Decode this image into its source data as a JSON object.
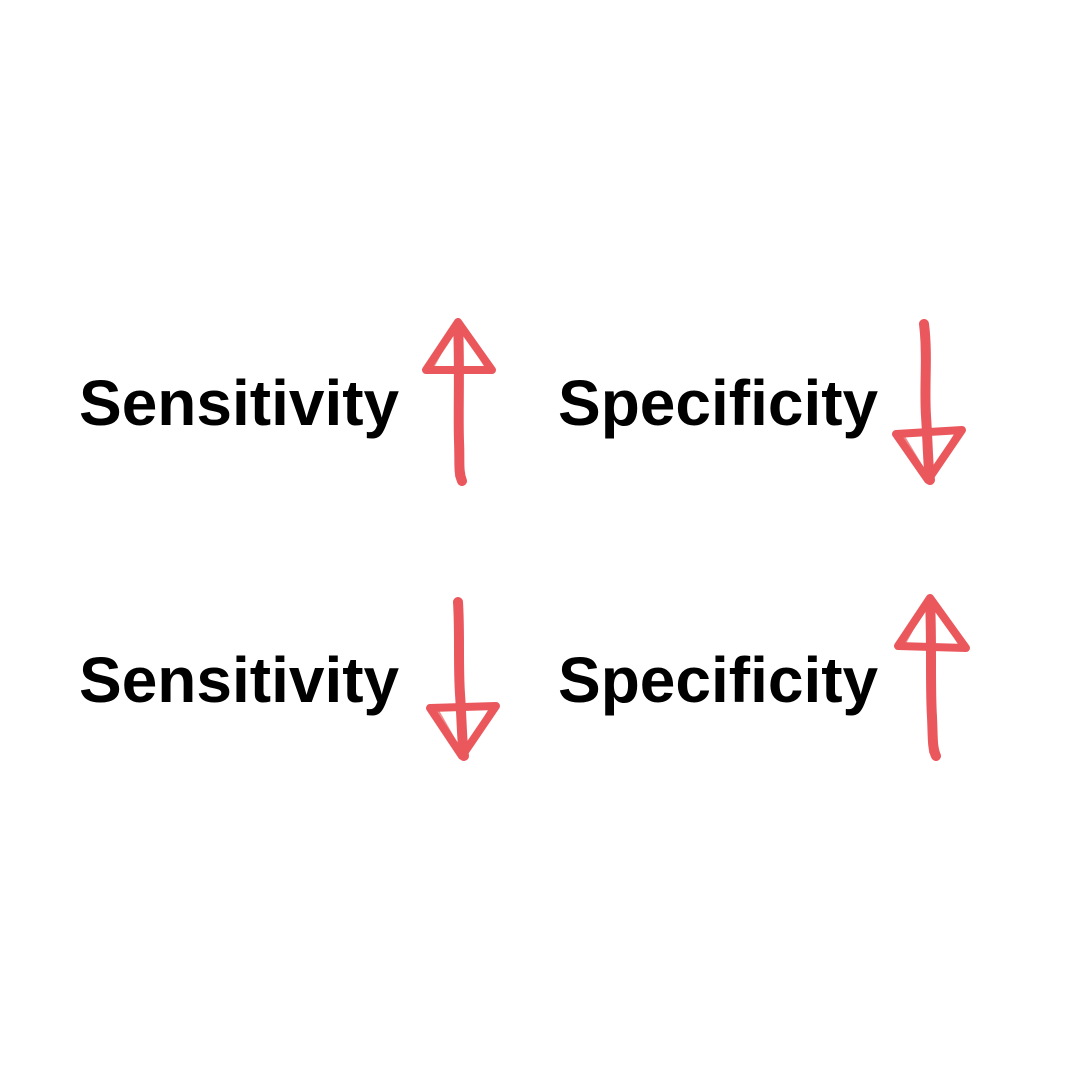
{
  "colors": {
    "background": "#ffffff",
    "text": "#000000",
    "arrow": "#e8474c"
  },
  "rows": [
    {
      "left_label": "Sensitivity",
      "left_arrow": "up-arrow-icon",
      "right_label": "Specificity",
      "right_arrow": "down-arrow-icon"
    },
    {
      "left_label": "Sensitivity",
      "left_arrow": "down-arrow-icon",
      "right_label": "Specificity",
      "right_arrow": "up-arrow-icon"
    }
  ]
}
